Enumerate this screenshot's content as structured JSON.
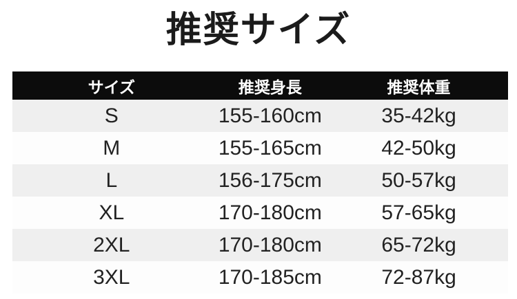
{
  "title": "推奨サイズ",
  "table": {
    "headers": {
      "size": "サイズ",
      "height": "推奨身長",
      "weight": "推奨体重"
    },
    "rows": [
      {
        "size": "S",
        "height": "155-160cm",
        "weight": "35-42kg"
      },
      {
        "size": "M",
        "height": "155-165cm",
        "weight": "42-50kg"
      },
      {
        "size": "L",
        "height": "156-175cm",
        "weight": "50-57kg"
      },
      {
        "size": "XL",
        "height": "170-180cm",
        "weight": "57-65kg"
      },
      {
        "size": "2XL",
        "height": "170-180cm",
        "weight": "65-72kg"
      },
      {
        "size": "3XL",
        "height": "170-185cm",
        "weight": "72-87kg"
      }
    ]
  },
  "colors": {
    "header_bg": "#0c0c0c",
    "header_text": "#ffffff",
    "row_stripe": "#efefef",
    "row_plain": "#fdfdfd",
    "text": "#222222"
  }
}
